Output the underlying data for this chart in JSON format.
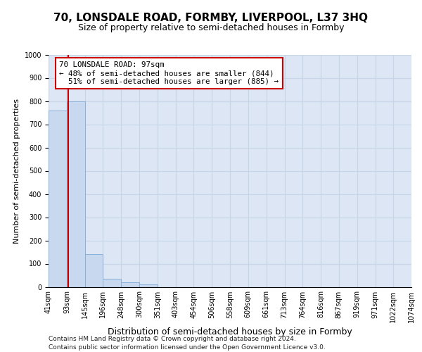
{
  "title": "70, LONSDALE ROAD, FORMBY, LIVERPOOL, L37 3HQ",
  "subtitle": "Size of property relative to semi-detached houses in Formby",
  "xlabel": "Distribution of semi-detached houses by size in Formby",
  "ylabel": "Number of semi-detached properties",
  "footnote1": "Contains HM Land Registry data © Crown copyright and database right 2024.",
  "footnote2": "Contains public sector information licensed under the Open Government Licence v3.0.",
  "property_size": 97,
  "property_label": "70 LONSDALE ROAD: 97sqm",
  "pct_smaller": 48,
  "count_smaller": 844,
  "pct_larger": 51,
  "count_larger": 885,
  "bin_edges": [
    41,
    93,
    145,
    196,
    248,
    300,
    351,
    403,
    454,
    506,
    558,
    609,
    661,
    713,
    764,
    816,
    867,
    919,
    971,
    1022,
    1074
  ],
  "bin_labels": [
    "41sqm",
    "93sqm",
    "145sqm",
    "196sqm",
    "248sqm",
    "300sqm",
    "351sqm",
    "403sqm",
    "454sqm",
    "506sqm",
    "558sqm",
    "609sqm",
    "661sqm",
    "713sqm",
    "764sqm",
    "816sqm",
    "867sqm",
    "919sqm",
    "971sqm",
    "1022sqm",
    "1074sqm"
  ],
  "bar_heights": [
    760,
    800,
    140,
    35,
    20,
    10,
    0,
    0,
    0,
    0,
    0,
    0,
    0,
    0,
    0,
    0,
    0,
    0,
    0,
    0
  ],
  "bar_color": "#c8d8ee",
  "bar_edge_color": "#8ab0d8",
  "line_color": "#cc0000",
  "box_color": "#cc0000",
  "ylim": [
    0,
    1000
  ],
  "yticks": [
    0,
    100,
    200,
    300,
    400,
    500,
    600,
    700,
    800,
    900,
    1000
  ],
  "grid_color": "#c8d4e8",
  "bg_color": "#dce6f5",
  "title_fontsize": 11,
  "subtitle_fontsize": 9,
  "ylabel_fontsize": 8,
  "xlabel_fontsize": 9,
  "tick_fontsize": 7,
  "footnote_fontsize": 6.5
}
